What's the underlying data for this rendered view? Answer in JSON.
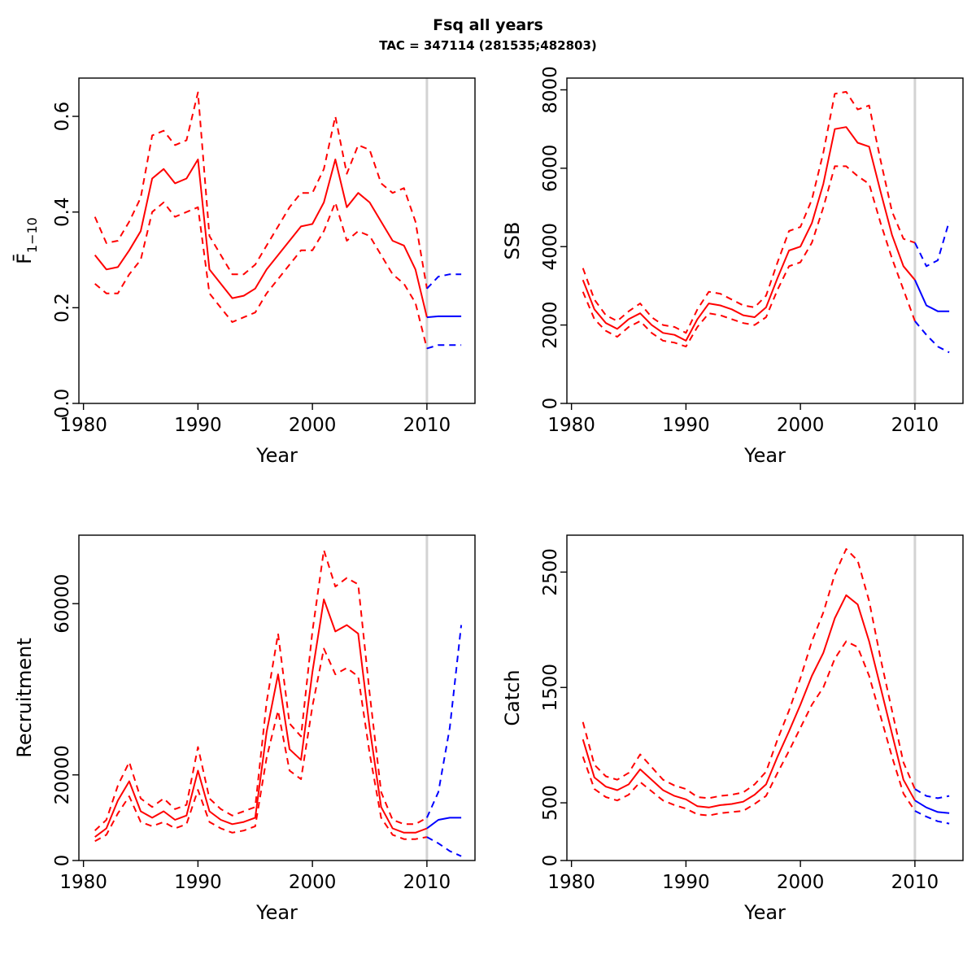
{
  "header": {
    "title": "Fsq all years",
    "subtitle": "TAC = 347114 (281535;482803)"
  },
  "colors": {
    "historical": "#ff0000",
    "projection": "#0000ff",
    "vline": "#d3d3d3",
    "axis": "#000000",
    "background": "#ffffff"
  },
  "style": {
    "median_linetype": "solid",
    "interval_linetype": "dashed",
    "vline_year": 2010
  },
  "chart_data": [
    {
      "name": "fbar",
      "type": "line",
      "xlabel": "Year",
      "ylabel": "F̄",
      "ylabel_sub": "1−10",
      "xlim": [
        1979.6,
        2014.2
      ],
      "ylim": [
        0,
        0.68
      ],
      "xticks": [
        1980,
        1990,
        2000,
        2010
      ],
      "xtick_labels": [
        "1980",
        "1990",
        "2000",
        "2010"
      ],
      "yticks": [
        0.0,
        0.2,
        0.4,
        0.6
      ],
      "ytick_labels": [
        "0.0",
        "0.2",
        "0.4",
        "0.6"
      ],
      "vline_x": 2010,
      "series": {
        "historical": {
          "x": [
            1981,
            1982,
            1983,
            1984,
            1985,
            1986,
            1987,
            1988,
            1989,
            1990,
            1991,
            1992,
            1993,
            1994,
            1995,
            1996,
            1997,
            1998,
            1999,
            2000,
            2001,
            2002,
            2003,
            2004,
            2005,
            2006,
            2007,
            2008,
            2009,
            2010
          ],
          "median": [
            0.31,
            0.28,
            0.285,
            0.32,
            0.36,
            0.47,
            0.49,
            0.46,
            0.47,
            0.51,
            0.28,
            0.25,
            0.22,
            0.225,
            0.24,
            0.28,
            0.31,
            0.34,
            0.37,
            0.375,
            0.42,
            0.51,
            0.41,
            0.44,
            0.42,
            0.38,
            0.34,
            0.33,
            0.28,
            0.18
          ],
          "hi": [
            0.39,
            0.335,
            0.34,
            0.38,
            0.43,
            0.56,
            0.57,
            0.54,
            0.55,
            0.65,
            0.35,
            0.31,
            0.27,
            0.27,
            0.29,
            0.33,
            0.37,
            0.41,
            0.44,
            0.44,
            0.49,
            0.6,
            0.48,
            0.54,
            0.53,
            0.46,
            0.44,
            0.45,
            0.38,
            0.24
          ],
          "lo": [
            0.25,
            0.23,
            0.23,
            0.27,
            0.3,
            0.4,
            0.42,
            0.39,
            0.4,
            0.41,
            0.23,
            0.2,
            0.17,
            0.18,
            0.19,
            0.23,
            0.26,
            0.29,
            0.32,
            0.32,
            0.36,
            0.42,
            0.34,
            0.36,
            0.35,
            0.31,
            0.27,
            0.25,
            0.21,
            0.115
          ]
        },
        "projection": {
          "x": [
            2010,
            2011,
            2012,
            2013
          ],
          "median": [
            0.18,
            0.182,
            0.182,
            0.182
          ],
          "hi": [
            0.24,
            0.265,
            0.27,
            0.27
          ],
          "lo": [
            0.115,
            0.122,
            0.122,
            0.122
          ]
        }
      }
    },
    {
      "name": "ssb",
      "type": "line",
      "xlabel": "Year",
      "ylabel": "SSB",
      "xlim": [
        1979.6,
        2014.2
      ],
      "ylim": [
        0,
        8300
      ],
      "xticks": [
        1980,
        1990,
        2000,
        2010
      ],
      "xtick_labels": [
        "1980",
        "1990",
        "2000",
        "2010"
      ],
      "yticks": [
        0,
        2000,
        4000,
        6000,
        8000
      ],
      "ytick_labels": [
        "0",
        "2000",
        "4000",
        "6000",
        "8000"
      ],
      "vline_x": 2010,
      "series": {
        "historical": {
          "x": [
            1981,
            1982,
            1983,
            1984,
            1985,
            1986,
            1987,
            1988,
            1989,
            1990,
            1991,
            1992,
            1993,
            1994,
            1995,
            1996,
            1997,
            1998,
            1999,
            2000,
            2001,
            2002,
            2003,
            2004,
            2005,
            2006,
            2007,
            2008,
            2009,
            2010
          ],
          "median": [
            3150,
            2400,
            2050,
            1900,
            2150,
            2300,
            2000,
            1800,
            1750,
            1600,
            2150,
            2550,
            2500,
            2400,
            2250,
            2200,
            2450,
            3200,
            3900,
            4000,
            4600,
            5600,
            7000,
            7050,
            6650,
            6550,
            5400,
            4300,
            3500,
            3150
          ],
          "hi": [
            3450,
            2650,
            2250,
            2100,
            2350,
            2550,
            2200,
            2000,
            1950,
            1800,
            2400,
            2850,
            2800,
            2650,
            2500,
            2450,
            2750,
            3600,
            4400,
            4500,
            5200,
            6400,
            7900,
            7950,
            7500,
            7600,
            6200,
            4900,
            4200,
            4100
          ],
          "lo": [
            2850,
            2150,
            1850,
            1700,
            1950,
            2100,
            1800,
            1600,
            1550,
            1450,
            1950,
            2300,
            2250,
            2150,
            2050,
            2000,
            2200,
            2900,
            3500,
            3600,
            4100,
            5000,
            6050,
            6050,
            5800,
            5600,
            4600,
            3700,
            2900,
            2100
          ]
        },
        "projection": {
          "x": [
            2010,
            2011,
            2012,
            2013
          ],
          "median": [
            3150,
            2500,
            2350,
            2350
          ],
          "hi": [
            4100,
            3500,
            3650,
            4650
          ],
          "lo": [
            2100,
            1750,
            1450,
            1300
          ]
        }
      }
    },
    {
      "name": "recruitment",
      "type": "line",
      "xlabel": "Year",
      "ylabel": "Recruitment",
      "xlim": [
        1979.6,
        2014.2
      ],
      "ylim": [
        0,
        76000
      ],
      "xticks": [
        1980,
        1990,
        2000,
        2010
      ],
      "xtick_labels": [
        "1980",
        "1990",
        "2000",
        "2010"
      ],
      "yticks": [
        0,
        20000,
        60000
      ],
      "ytick_labels": [
        "0",
        "20000",
        "60000"
      ],
      "vline_x": 2010,
      "series": {
        "historical": {
          "x": [
            1981,
            1982,
            1983,
            1984,
            1985,
            1986,
            1987,
            1988,
            1989,
            1990,
            1991,
            1992,
            1993,
            1994,
            1995,
            1996,
            1997,
            1998,
            1999,
            2000,
            2001,
            2002,
            2003,
            2004,
            2005,
            2006,
            2007,
            2008,
            2009,
            2010
          ],
          "median": [
            5500,
            7500,
            14000,
            18500,
            11500,
            10000,
            11500,
            9500,
            10500,
            21000,
            11500,
            9500,
            8500,
            9000,
            10000,
            30000,
            43500,
            26000,
            23500,
            44000,
            61000,
            53500,
            55000,
            53000,
            31000,
            12500,
            7500,
            6500,
            6500,
            7500
          ],
          "hi": [
            7000,
            9500,
            17500,
            23000,
            14500,
            12500,
            14500,
            12000,
            13000,
            26500,
            14500,
            12000,
            10500,
            11500,
            12500,
            37000,
            53000,
            32000,
            29000,
            53500,
            72500,
            64000,
            66000,
            64500,
            39000,
            16000,
            9500,
            8500,
            8500,
            10000
          ],
          "lo": [
            4500,
            6000,
            11000,
            15000,
            9000,
            8000,
            9000,
            7500,
            8500,
            16500,
            9000,
            7500,
            6500,
            7000,
            8000,
            24000,
            35000,
            21000,
            19000,
            36000,
            49500,
            43500,
            45000,
            43000,
            25000,
            10000,
            6000,
            5000,
            5000,
            5500
          ]
        },
        "projection": {
          "x": [
            2010,
            2011,
            2012,
            2013
          ],
          "median": [
            7500,
            9500,
            10000,
            10000
          ],
          "hi": [
            10000,
            16000,
            31000,
            55000
          ],
          "lo": [
            5500,
            4000,
            2200,
            1000
          ]
        }
      }
    },
    {
      "name": "catch",
      "type": "line",
      "xlabel": "Year",
      "ylabel": "Catch",
      "xlim": [
        1979.6,
        2014.2
      ],
      "ylim": [
        0,
        2820
      ],
      "xticks": [
        1980,
        1990,
        2000,
        2010
      ],
      "xtick_labels": [
        "1980",
        "1990",
        "2000",
        "2010"
      ],
      "yticks": [
        0,
        500,
        1500,
        2500
      ],
      "ytick_labels": [
        "0",
        "500",
        "1500",
        "2500"
      ],
      "vline_x": 2010,
      "series": {
        "historical": {
          "x": [
            1981,
            1982,
            1983,
            1984,
            1985,
            1986,
            1987,
            1988,
            1989,
            1990,
            1991,
            1992,
            1993,
            1994,
            1995,
            1996,
            1997,
            1998,
            1999,
            2000,
            2001,
            2002,
            2003,
            2004,
            2005,
            2006,
            2007,
            2008,
            2009,
            2010
          ],
          "median": [
            1050,
            720,
            640,
            610,
            660,
            790,
            700,
            610,
            560,
            530,
            470,
            460,
            480,
            490,
            510,
            570,
            660,
            900,
            1120,
            1350,
            1600,
            1800,
            2100,
            2300,
            2220,
            1900,
            1500,
            1100,
            700,
            520
          ],
          "hi": [
            1200,
            830,
            730,
            700,
            760,
            920,
            810,
            700,
            650,
            620,
            550,
            540,
            560,
            570,
            590,
            660,
            770,
            1050,
            1300,
            1580,
            1900,
            2150,
            2480,
            2700,
            2600,
            2250,
            1750,
            1300,
            850,
            620
          ],
          "lo": [
            900,
            620,
            550,
            520,
            570,
            680,
            600,
            520,
            480,
            450,
            400,
            390,
            410,
            420,
            430,
            490,
            560,
            760,
            950,
            1150,
            1350,
            1500,
            1750,
            1900,
            1850,
            1600,
            1250,
            900,
            580,
            430
          ]
        },
        "projection": {
          "x": [
            2010,
            2011,
            2012,
            2013
          ],
          "median": [
            520,
            460,
            420,
            410
          ],
          "hi": [
            620,
            560,
            540,
            560
          ],
          "lo": [
            430,
            380,
            340,
            320
          ]
        }
      }
    }
  ]
}
